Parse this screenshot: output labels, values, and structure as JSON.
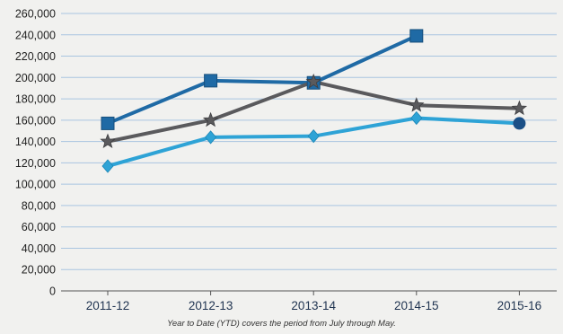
{
  "chart_data": {
    "type": "line",
    "categories": [
      "2011-12",
      "2012-13",
      "2013-14",
      "2014-15",
      "2015-16"
    ],
    "ylim": [
      0,
      260000
    ],
    "yticks": [
      0,
      20000,
      40000,
      60000,
      80000,
      100000,
      120000,
      140000,
      160000,
      180000,
      200000,
      220000,
      240000,
      260000
    ],
    "ytick_labels": [
      "0",
      "20,000",
      "40,000",
      "60,000",
      "80,000",
      "100,000",
      "120,000",
      "140,000",
      "160,000",
      "180,000",
      "200,000",
      "220,000",
      "240,000",
      "260,000"
    ],
    "grid": true,
    "note": "Year to Date (YTD) covers the period from July through May.",
    "series": [
      {
        "values": [
          157000,
          197000,
          195000,
          239000,
          null
        ],
        "marker": "square",
        "color": "#1f6aa5"
      },
      {
        "values": [
          140000,
          160000,
          196000,
          174000,
          171000
        ],
        "marker": "star",
        "color": "#5a5a5d"
      },
      {
        "values": [
          117000,
          144000,
          145000,
          162000,
          157000
        ],
        "marker": "diamond",
        "color": "#2ea3d6",
        "last_marker": "circle",
        "last_marker_color": "#1a4f86"
      }
    ]
  }
}
